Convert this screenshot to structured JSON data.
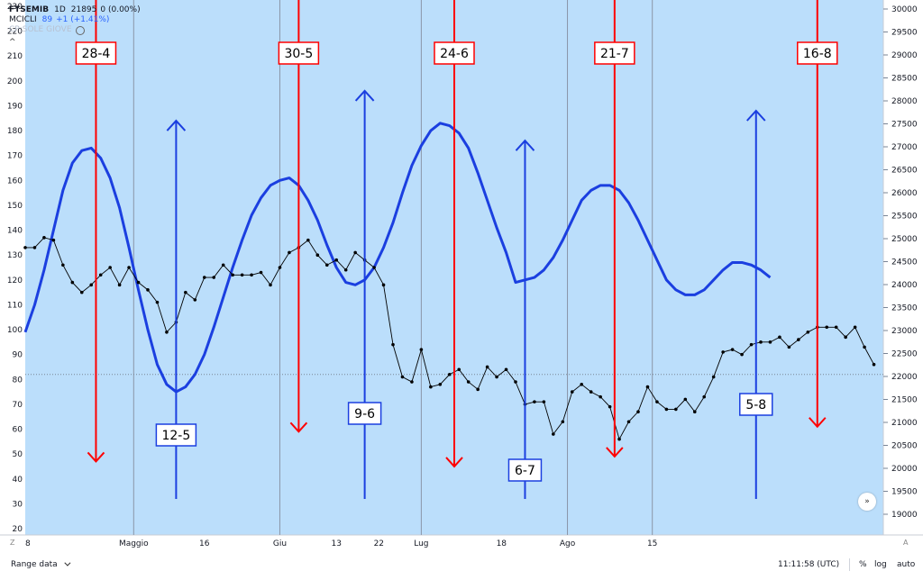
{
  "legend": {
    "symbol": "FTSEMIB",
    "timeframe": "1D",
    "price": "21895",
    "change": "0 (0.00%)",
    "indicator_name": "MCICLI",
    "indicator_value": "89",
    "indicator_change": "+1 (+1.41%)",
    "hidden_indicator": "CP:SOLE GIOVE",
    "collapse_glyph": "^"
  },
  "bottom_bar": {
    "range_label": "Range data",
    "clock": "11:11:58 (UTC)",
    "percent": "%",
    "log": "log",
    "auto": "auto"
  },
  "axis_buttons": {
    "left": "Z",
    "right": "A"
  },
  "scroll_button_glyph": "»",
  "colors": {
    "background": "#bbdefb",
    "cycle_line": "#1b3fe0",
    "price_line": "#000000",
    "top_marker": "#ff0000",
    "bottom_marker": "#1b3fe0",
    "date_grid": "#8a96a8"
  },
  "chart_data": {
    "type": "line",
    "left_axis": {
      "min": 20,
      "max": 230,
      "ticks": [
        20,
        30,
        40,
        50,
        60,
        70,
        80,
        90,
        100,
        110,
        120,
        130,
        140,
        150,
        160,
        170,
        180,
        190,
        200,
        210,
        220,
        230
      ]
    },
    "right_axis": {
      "min": 19000,
      "max": 30000,
      "ticks": [
        19000,
        19500,
        20000,
        20500,
        21000,
        21500,
        22000,
        22500,
        23000,
        23500,
        24000,
        24500,
        25000,
        25500,
        26000,
        26500,
        27000,
        27500,
        28000,
        28500,
        29000,
        29500,
        30000
      ]
    },
    "x_axis": {
      "labels": [
        {
          "text": "8",
          "day": 0
        },
        {
          "text": "Maggio",
          "day": 23
        },
        {
          "text": "16",
          "day": 38
        },
        {
          "text": "Giu",
          "day": 54
        },
        {
          "text": "13",
          "day": 66
        },
        {
          "text": "22",
          "day": 75
        },
        {
          "text": "Lug",
          "day": 84
        },
        {
          "text": "18",
          "day": 101
        },
        {
          "text": "Ago",
          "day": 115
        },
        {
          "text": "15",
          "day": 133
        }
      ],
      "grid_days": [
        23,
        54,
        84,
        115,
        133
      ]
    },
    "series": [
      {
        "role": "cycle",
        "axis": "left",
        "points": [
          [
            0,
            99
          ],
          [
            2,
            110
          ],
          [
            4,
            124
          ],
          [
            6,
            140
          ],
          [
            8,
            156
          ],
          [
            10,
            167
          ],
          [
            12,
            172
          ],
          [
            14,
            173
          ],
          [
            16,
            169
          ],
          [
            18,
            161
          ],
          [
            20,
            149
          ],
          [
            22,
            133
          ],
          [
            24,
            116
          ],
          [
            26,
            100
          ],
          [
            28,
            86
          ],
          [
            30,
            78
          ],
          [
            32,
            75
          ],
          [
            34,
            77
          ],
          [
            36,
            82
          ],
          [
            38,
            90
          ],
          [
            40,
            101
          ],
          [
            42,
            113
          ],
          [
            44,
            125
          ],
          [
            46,
            136
          ],
          [
            48,
            146
          ],
          [
            50,
            153
          ],
          [
            52,
            158
          ],
          [
            54,
            160
          ],
          [
            56,
            161
          ],
          [
            58,
            158
          ],
          [
            60,
            152
          ],
          [
            62,
            144
          ],
          [
            64,
            134
          ],
          [
            66,
            125
          ],
          [
            68,
            119
          ],
          [
            70,
            118
          ],
          [
            72,
            120
          ],
          [
            74,
            125
          ],
          [
            76,
            133
          ],
          [
            78,
            143
          ],
          [
            80,
            155
          ],
          [
            82,
            166
          ],
          [
            84,
            174
          ],
          [
            86,
            180
          ],
          [
            88,
            183
          ],
          [
            90,
            182
          ],
          [
            92,
            179
          ],
          [
            94,
            173
          ],
          [
            96,
            163
          ],
          [
            98,
            152
          ],
          [
            100,
            141
          ],
          [
            102,
            131
          ],
          [
            104,
            119
          ],
          [
            106,
            120
          ],
          [
            108,
            121
          ],
          [
            110,
            124
          ],
          [
            112,
            129
          ],
          [
            114,
            136
          ],
          [
            116,
            144
          ],
          [
            118,
            152
          ],
          [
            120,
            156
          ],
          [
            122,
            158
          ],
          [
            124,
            158
          ],
          [
            126,
            156
          ],
          [
            128,
            151
          ],
          [
            130,
            144
          ],
          [
            132,
            136
          ],
          [
            134,
            128
          ],
          [
            136,
            120
          ],
          [
            138,
            116
          ],
          [
            140,
            114
          ],
          [
            142,
            114
          ],
          [
            144,
            116
          ],
          [
            146,
            120
          ],
          [
            148,
            124
          ],
          [
            150,
            127
          ],
          [
            152,
            127
          ],
          [
            154,
            126
          ],
          [
            156,
            124
          ],
          [
            158,
            121
          ]
        ]
      },
      {
        "role": "price",
        "axis": "left",
        "points": [
          [
            0,
            133
          ],
          [
            2,
            133
          ],
          [
            4,
            137
          ],
          [
            6,
            136
          ],
          [
            8,
            126
          ],
          [
            10,
            119
          ],
          [
            12,
            115
          ],
          [
            14,
            118
          ],
          [
            16,
            122
          ],
          [
            18,
            125
          ],
          [
            20,
            118
          ],
          [
            22,
            125
          ],
          [
            24,
            119
          ],
          [
            26,
            116
          ],
          [
            28,
            111
          ],
          [
            30,
            99
          ],
          [
            32,
            103
          ],
          [
            34,
            115
          ],
          [
            36,
            112
          ],
          [
            38,
            121
          ],
          [
            40,
            121
          ],
          [
            42,
            126
          ],
          [
            44,
            122
          ],
          [
            46,
            122
          ],
          [
            48,
            122
          ],
          [
            50,
            123
          ],
          [
            52,
            118
          ],
          [
            54,
            125
          ],
          [
            56,
            131
          ],
          [
            58,
            133
          ],
          [
            60,
            136
          ],
          [
            62,
            130
          ],
          [
            64,
            126
          ],
          [
            66,
            128
          ],
          [
            68,
            124
          ],
          [
            70,
            131
          ],
          [
            72,
            128
          ],
          [
            74,
            125
          ],
          [
            76,
            118
          ],
          [
            78,
            94
          ],
          [
            80,
            81
          ],
          [
            82,
            79
          ],
          [
            84,
            92
          ],
          [
            86,
            77
          ],
          [
            88,
            78
          ],
          [
            90,
            82
          ],
          [
            92,
            84
          ],
          [
            94,
            79
          ],
          [
            96,
            76
          ],
          [
            98,
            85
          ],
          [
            100,
            81
          ],
          [
            102,
            84
          ],
          [
            104,
            79
          ],
          [
            106,
            70
          ],
          [
            108,
            71
          ],
          [
            110,
            71
          ],
          [
            112,
            58
          ],
          [
            114,
            63
          ],
          [
            116,
            75
          ],
          [
            118,
            78
          ],
          [
            120,
            75
          ],
          [
            122,
            73
          ],
          [
            124,
            69
          ],
          [
            126,
            56
          ],
          [
            128,
            63
          ],
          [
            130,
            67
          ],
          [
            132,
            77
          ],
          [
            134,
            71
          ],
          [
            136,
            68
          ],
          [
            138,
            68
          ],
          [
            140,
            72
          ],
          [
            142,
            67
          ],
          [
            144,
            73
          ],
          [
            146,
            81
          ],
          [
            148,
            91
          ],
          [
            150,
            92
          ],
          [
            152,
            90
          ],
          [
            154,
            94
          ],
          [
            156,
            95
          ],
          [
            158,
            95
          ],
          [
            160,
            97
          ],
          [
            162,
            93
          ],
          [
            164,
            96
          ],
          [
            166,
            99
          ],
          [
            168,
            101
          ],
          [
            170,
            101
          ],
          [
            172,
            101
          ],
          [
            174,
            97
          ],
          [
            176,
            101
          ],
          [
            178,
            93
          ],
          [
            180,
            86
          ]
        ]
      }
    ],
    "reference_line": {
      "axis": "left",
      "value": 82
    },
    "top_markers": [
      {
        "label": "28-4",
        "day": 15,
        "value": 47
      },
      {
        "label": "30-5",
        "day": 58,
        "value": 59
      },
      {
        "label": "24-6",
        "day": 91,
        "value": 45
      },
      {
        "label": "21-7",
        "day": 125,
        "value": 49
      },
      {
        "label": "16-8",
        "day": 168,
        "value": 61
      }
    ],
    "bottom_markers": [
      {
        "label": "12-5",
        "day": 32,
        "value": 184
      },
      {
        "label": "9-6",
        "day": 72,
        "value": 196
      },
      {
        "label": "6-7",
        "day": 106,
        "value": 176
      },
      {
        "label": "5-8",
        "day": 155,
        "value": 188
      }
    ]
  }
}
